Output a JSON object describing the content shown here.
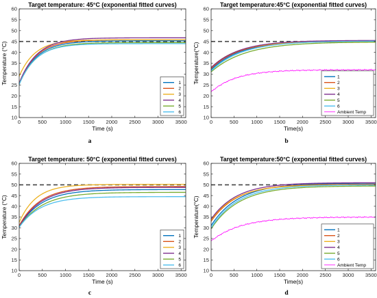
{
  "chart_data": [
    {
      "type": "line",
      "panel_caption": "a",
      "title": "Target temperature: 45°C (exponential fitted curves)",
      "xlabel": "Time (s)",
      "ylabel": "Temperature (°C)",
      "xlim": [
        0,
        3600
      ],
      "ylim": [
        10,
        60
      ],
      "xticks": [
        0,
        500,
        1000,
        1500,
        2000,
        2500,
        3000,
        3500
      ],
      "yticks": [
        10,
        15,
        20,
        25,
        30,
        35,
        40,
        45,
        50,
        55,
        60
      ],
      "grid": false,
      "legend_position": "bottom-right",
      "target_line": 45,
      "series": [
        {
          "name": "1",
          "color": "#0072BD",
          "start": 25.5,
          "end": 45.3,
          "tau": 380
        },
        {
          "name": "2",
          "color": "#D95319",
          "start": 25.8,
          "end": 45.8,
          "tau": 370
        },
        {
          "name": "3",
          "color": "#EDB120",
          "start": 29.0,
          "end": 45.8,
          "tau": 340
        },
        {
          "name": "4",
          "color": "#7E2F8E",
          "start": 25.8,
          "end": 46.7,
          "tau": 380
        },
        {
          "name": "5",
          "color": "#77AC30",
          "start": 25.3,
          "end": 44.5,
          "tau": 380
        },
        {
          "name": "6",
          "color": "#4DBEEE",
          "start": 25.2,
          "end": 44.0,
          "tau": 360
        }
      ]
    },
    {
      "type": "line",
      "panel_caption": "b",
      "title": "Target temperature:45°C (exponential fitted curves)",
      "xlabel": "Time(s)",
      "ylabel": "Temperature(°C)",
      "xlim": [
        0,
        3600
      ],
      "ylim": [
        10,
        60
      ],
      "xticks": [
        0,
        500,
        1000,
        1500,
        2000,
        2500,
        3000,
        3500
      ],
      "yticks": [
        10,
        15,
        20,
        25,
        30,
        35,
        40,
        45,
        50,
        55,
        60
      ],
      "grid": false,
      "legend_position": "bottom-right",
      "target_line": 45,
      "series": [
        {
          "name": "1",
          "color": "#0072BD",
          "start": 32.0,
          "end": 45.3,
          "tau": 650
        },
        {
          "name": "2",
          "color": "#D95319",
          "start": 32.5,
          "end": 45.0,
          "tau": 600
        },
        {
          "name": "3",
          "color": "#EDB120",
          "start": 33.0,
          "end": 45.0,
          "tau": 580
        },
        {
          "name": "4",
          "color": "#7E2F8E",
          "start": 33.0,
          "end": 45.5,
          "tau": 620
        },
        {
          "name": "5",
          "color": "#77AC30",
          "start": 31.0,
          "end": 44.8,
          "tau": 750
        },
        {
          "name": "6",
          "color": "#4DBEEE",
          "start": 31.5,
          "end": 45.2,
          "tau": 680
        },
        {
          "name": "Ambient Temp",
          "color": "#FF00FF",
          "start": 21.8,
          "end": 32.0,
          "tau": 550,
          "noisy": true
        }
      ]
    },
    {
      "type": "line",
      "panel_caption": "c",
      "title": "Target temperature: 50°C (exponential fitted curves)",
      "xlabel": "Time (s)",
      "ylabel": "Temperature (°C)",
      "xlim": [
        0,
        3600
      ],
      "ylim": [
        10,
        60
      ],
      "xticks": [
        0,
        500,
        1000,
        1500,
        2000,
        2500,
        3000,
        3500
      ],
      "yticks": [
        10,
        15,
        20,
        25,
        30,
        35,
        40,
        45,
        50,
        55,
        60
      ],
      "grid": false,
      "legend_position": "bottom-right",
      "target_line": 50,
      "series": [
        {
          "name": "1",
          "color": "#0072BD",
          "start": 30.5,
          "end": 47.8,
          "tau": 480
        },
        {
          "name": "2",
          "color": "#D95319",
          "start": 31.0,
          "end": 49.2,
          "tau": 460
        },
        {
          "name": "3",
          "color": "#EDB120",
          "start": 32.5,
          "end": 50.2,
          "tau": 360
        },
        {
          "name": "4",
          "color": "#7E2F8E",
          "start": 30.5,
          "end": 48.8,
          "tau": 470
        },
        {
          "name": "5",
          "color": "#77AC30",
          "start": 30.3,
          "end": 46.5,
          "tau": 500
        },
        {
          "name": "6",
          "color": "#4DBEEE",
          "start": 30.2,
          "end": 44.5,
          "tau": 460
        }
      ]
    },
    {
      "type": "line",
      "panel_caption": "d",
      "title": "Target temperature:50°C (exponential fitted curves)",
      "xlabel": "Time(s)",
      "ylabel": "Temperature(°C)",
      "xlim": [
        0,
        3600
      ],
      "ylim": [
        10,
        60
      ],
      "xticks": [
        0,
        500,
        1000,
        1500,
        2000,
        2500,
        3000,
        3500
      ],
      "yticks": [
        10,
        15,
        20,
        25,
        30,
        35,
        40,
        45,
        50,
        55,
        60
      ],
      "grid": false,
      "legend_position": "bottom-right",
      "target_line": 50,
      "series": [
        {
          "name": "1",
          "color": "#0072BD",
          "start": 31.0,
          "end": 50.8,
          "tau": 600
        },
        {
          "name": "2",
          "color": "#D95319",
          "start": 33.0,
          "end": 50.3,
          "tau": 560
        },
        {
          "name": "3",
          "color": "#EDB120",
          "start": 33.5,
          "end": 50.0,
          "tau": 540
        },
        {
          "name": "4",
          "color": "#7E2F8E",
          "start": 34.0,
          "end": 51.0,
          "tau": 560
        },
        {
          "name": "5",
          "color": "#77AC30",
          "start": 29.5,
          "end": 49.5,
          "tau": 620
        },
        {
          "name": "6",
          "color": "#4DBEEE",
          "start": 30.0,
          "end": 50.0,
          "tau": 600
        },
        {
          "name": "Ambient Temp",
          "color": "#FF00FF",
          "start": 23.8,
          "end": 35.0,
          "tau": 650,
          "noisy": true
        }
      ]
    }
  ]
}
